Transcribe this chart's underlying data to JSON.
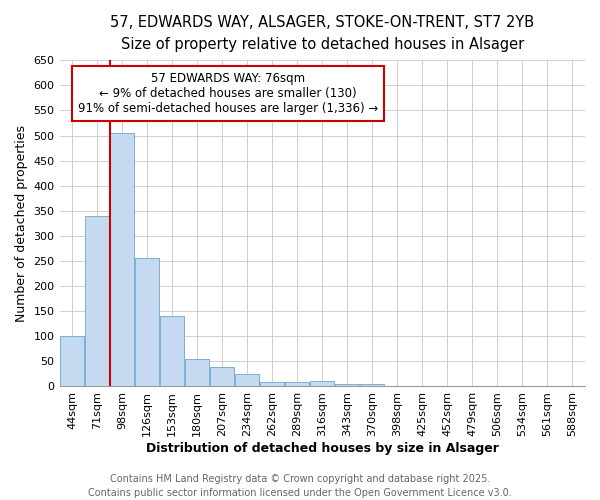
{
  "title_line1": "57, EDWARDS WAY, ALSAGER, STOKE-ON-TRENT, ST7 2YB",
  "title_line2": "Size of property relative to detached houses in Alsager",
  "xlabel": "Distribution of detached houses by size in Alsager",
  "ylabel": "Number of detached properties",
  "bar_color": "#c5d9f0",
  "bar_edge_color": "#7bafd4",
  "categories": [
    "44sqm",
    "71sqm",
    "98sqm",
    "126sqm",
    "153sqm",
    "180sqm",
    "207sqm",
    "234sqm",
    "262sqm",
    "289sqm",
    "316sqm",
    "343sqm",
    "370sqm",
    "398sqm",
    "425sqm",
    "452sqm",
    "479sqm",
    "506sqm",
    "534sqm",
    "561sqm",
    "588sqm"
  ],
  "values": [
    100,
    340,
    505,
    257,
    140,
    55,
    38,
    25,
    8,
    8,
    10,
    5,
    5,
    1,
    1,
    1,
    1,
    1,
    1,
    1,
    1
  ],
  "ylim": [
    0,
    650
  ],
  "yticks": [
    0,
    50,
    100,
    150,
    200,
    250,
    300,
    350,
    400,
    450,
    500,
    550,
    600,
    650
  ],
  "marker_label": "57 EDWARDS WAY: 76sqm",
  "annotation_line1": "← 9% of detached houses are smaller (130)",
  "annotation_line2": "91% of semi-detached houses are larger (1,336) →",
  "annotation_box_color": "#ffffff",
  "annotation_border_color": "#cc0000",
  "vline_color": "#cc0000",
  "vline_x": 1.5,
  "footer_line1": "Contains HM Land Registry data © Crown copyright and database right 2025.",
  "footer_line2": "Contains public sector information licensed under the Open Government Licence v3.0.",
  "background_color": "#ffffff",
  "grid_color": "#c8c8c8",
  "title_fontsize": 10.5,
  "subtitle_fontsize": 9.5,
  "axis_label_fontsize": 9,
  "tick_fontsize": 8,
  "annotation_fontsize": 8.5,
  "footer_fontsize": 7
}
